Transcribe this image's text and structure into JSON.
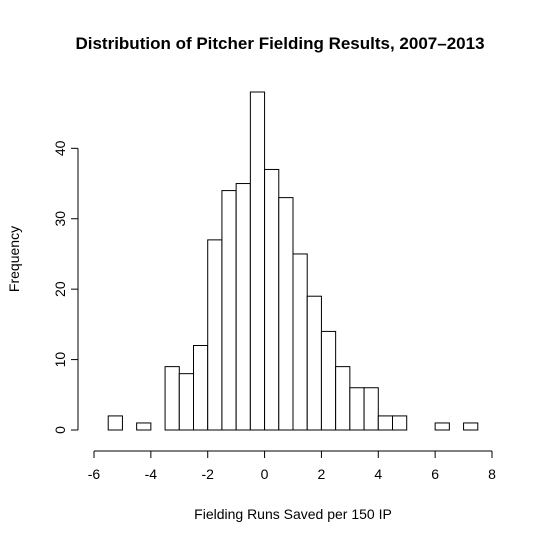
{
  "chart_data": {
    "type": "bar",
    "title": "Distribution of Pitcher Fielding Results, 2007–2013",
    "xlabel": "Fielding Runs Saved per 150 IP",
    "ylabel": "Frequency",
    "bin_width": 0.5,
    "bin_starts": [
      -6,
      -5.5,
      -5,
      -4.5,
      -4,
      -3.5,
      -3,
      -2.5,
      -2,
      -1.5,
      -1,
      -0.5,
      0,
      0.5,
      1,
      1.5,
      2,
      2.5,
      3,
      3.5,
      4,
      4.5,
      5,
      5.5,
      6,
      6.5,
      7,
      7.5
    ],
    "values": [
      0,
      2,
      0,
      1,
      0,
      9,
      8,
      12,
      27,
      34,
      35,
      48,
      37,
      33,
      25,
      19,
      14,
      9,
      6,
      6,
      2,
      2,
      0,
      0,
      1,
      0,
      1,
      0
    ],
    "xlim": [
      -6,
      8
    ],
    "ylim": [
      0,
      48
    ],
    "xticks": [
      -6,
      -4,
      -2,
      0,
      2,
      4,
      6,
      8
    ],
    "yticks": [
      0,
      10,
      20,
      30,
      40
    ],
    "grid": false
  }
}
